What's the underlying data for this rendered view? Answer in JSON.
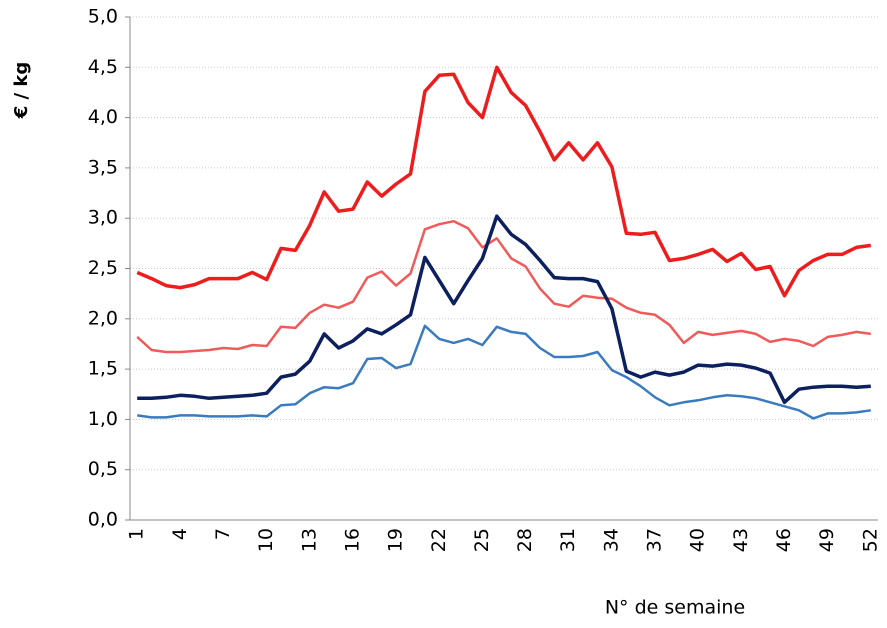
{
  "chart_data": {
    "type": "line",
    "y_label": "€ / kg",
    "x_label": "N° de semaine",
    "categories": [
      "1",
      null,
      null,
      "4",
      null,
      null,
      "7",
      null,
      null,
      "10",
      null,
      null,
      "13",
      null,
      null,
      "16",
      null,
      null,
      "19",
      null,
      null,
      "22",
      null,
      null,
      "25",
      null,
      null,
      "28",
      null,
      null,
      "31",
      null,
      null,
      "34",
      null,
      null,
      "37",
      null,
      null,
      "40",
      null,
      null,
      "43",
      null,
      null,
      "46",
      null,
      null,
      "49",
      null,
      null,
      "52"
    ],
    "series": [
      {
        "color": "#ee1c1c",
        "values": [
          2.46,
          2.4,
          2.33,
          2.31,
          2.34,
          2.4,
          2.4,
          2.4,
          2.46,
          2.39,
          2.7,
          2.68,
          2.93,
          3.26,
          3.07,
          3.09,
          3.36,
          3.22,
          3.34,
          3.44,
          4.26,
          4.42,
          4.43,
          4.15,
          4.0,
          4.5,
          4.25,
          4.12,
          3.86,
          3.58,
          3.75,
          3.58,
          3.75,
          3.51,
          2.85,
          2.84,
          2.86,
          2.58,
          2.6,
          2.64,
          2.69,
          2.57,
          2.65,
          2.49,
          2.52,
          2.23,
          2.48,
          2.58,
          2.64,
          2.64,
          2.71,
          2.73
        ]
      },
      {
        "color": "#f05a5a",
        "values": [
          1.82,
          1.69,
          1.67,
          1.67,
          1.68,
          1.69,
          1.71,
          1.7,
          1.74,
          1.73,
          1.92,
          1.91,
          2.06,
          2.14,
          2.11,
          2.17,
          2.41,
          2.47,
          2.33,
          2.45,
          2.89,
          2.94,
          2.97,
          2.9,
          2.71,
          2.8,
          2.6,
          2.52,
          2.3,
          2.15,
          2.12,
          2.23,
          2.21,
          2.2,
          2.11,
          2.06,
          2.04,
          1.94,
          1.76,
          1.87,
          1.84,
          1.86,
          1.88,
          1.85,
          1.77,
          1.8,
          1.78,
          1.73,
          1.82,
          1.84,
          1.87,
          1.85
        ]
      },
      {
        "color": "#0c1f5e",
        "values": [
          1.21,
          1.21,
          1.22,
          1.24,
          1.23,
          1.21,
          1.22,
          1.23,
          1.24,
          1.26,
          1.42,
          1.45,
          1.58,
          1.85,
          1.71,
          1.78,
          1.9,
          1.85,
          1.94,
          2.04,
          2.61,
          2.38,
          2.15,
          2.38,
          2.6,
          3.02,
          2.84,
          2.74,
          2.58,
          2.41,
          2.4,
          2.4,
          2.37,
          2.1,
          1.48,
          1.42,
          1.47,
          1.44,
          1.47,
          1.54,
          1.53,
          1.55,
          1.54,
          1.51,
          1.46,
          1.17,
          1.3,
          1.32,
          1.33,
          1.33,
          1.32,
          1.33
        ]
      },
      {
        "color": "#3a7bbf",
        "values": [
          1.04,
          1.02,
          1.02,
          1.04,
          1.04,
          1.03,
          1.03,
          1.03,
          1.04,
          1.03,
          1.14,
          1.15,
          1.26,
          1.32,
          1.31,
          1.36,
          1.6,
          1.61,
          1.51,
          1.55,
          1.93,
          1.8,
          1.76,
          1.8,
          1.74,
          1.92,
          1.87,
          1.85,
          1.71,
          1.62,
          1.62,
          1.63,
          1.67,
          1.49,
          1.42,
          1.33,
          1.22,
          1.14,
          1.17,
          1.19,
          1.22,
          1.24,
          1.23,
          1.21,
          1.17,
          1.13,
          1.09,
          1.01,
          1.06,
          1.06,
          1.07,
          1.09
        ]
      }
    ],
    "ylim": [
      0,
      5
    ],
    "yticks": [
      {
        "value": 0,
        "label": "0,0"
      },
      {
        "value": 0.5,
        "label": "0,5"
      },
      {
        "value": 1,
        "label": "1,0"
      },
      {
        "value": 1.5,
        "label": "1,5"
      },
      {
        "value": 2,
        "label": "2,0"
      },
      {
        "value": 2.5,
        "label": "2,5"
      },
      {
        "value": 3,
        "label": "3,0"
      },
      {
        "value": 3.5,
        "label": "3,5"
      },
      {
        "value": 4,
        "label": "4,0"
      },
      {
        "value": 4.5,
        "label": "4,5"
      },
      {
        "value": 5,
        "label": "5,0"
      }
    ],
    "grid": true
  }
}
